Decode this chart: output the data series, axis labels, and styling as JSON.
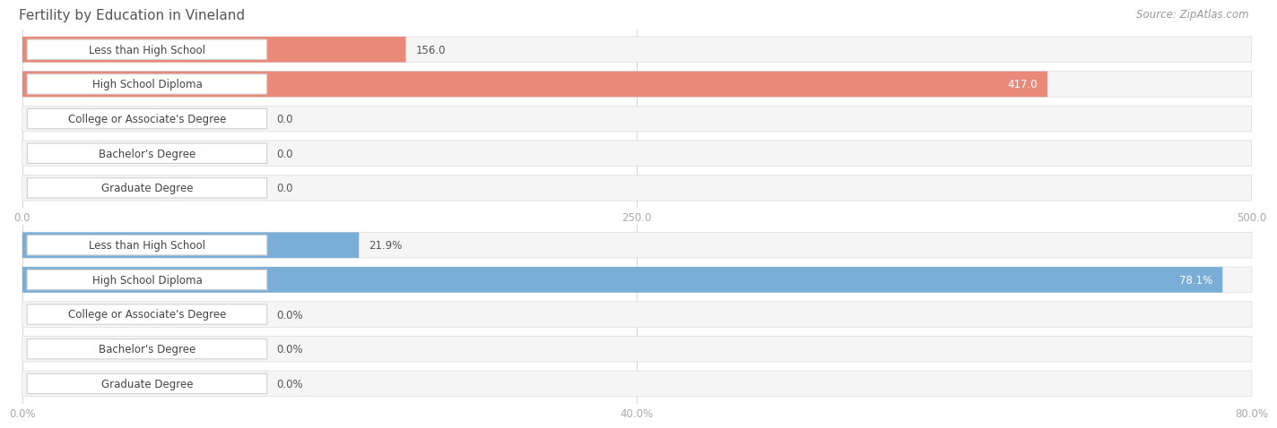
{
  "title": "Fertility by Education in Vineland",
  "source": "Source: ZipAtlas.com",
  "top_chart": {
    "categories": [
      "Less than High School",
      "High School Diploma",
      "College or Associate's Degree",
      "Bachelor's Degree",
      "Graduate Degree"
    ],
    "values": [
      156.0,
      417.0,
      0.0,
      0.0,
      0.0
    ],
    "bar_color": "#e8897a",
    "xlim": [
      0,
      500
    ],
    "xticks": [
      0.0,
      250.0,
      500.0
    ],
    "xtick_labels": [
      "0.0",
      "250.0",
      "500.0"
    ]
  },
  "bottom_chart": {
    "categories": [
      "Less than High School",
      "High School Diploma",
      "College or Associate's Degree",
      "Bachelor's Degree",
      "Graduate Degree"
    ],
    "values": [
      21.9,
      78.1,
      0.0,
      0.0,
      0.0
    ],
    "bar_color": "#7aaed6",
    "xlim": [
      0,
      80
    ],
    "xticks": [
      0.0,
      40.0,
      80.0
    ],
    "xtick_labels": [
      "0.0%",
      "40.0%",
      "80.0%"
    ]
  },
  "figure_bg": "#ffffff",
  "title_fontsize": 11,
  "title_color": "#555555",
  "source_fontsize": 8.5,
  "source_color": "#999999",
  "label_fontsize": 8.5,
  "value_fontsize": 8.5,
  "row_bg_color": "#f5f5f5",
  "row_border_color": "#e0e0e0",
  "label_box_color": "#ffffff",
  "label_box_border": "#d0d0d0",
  "grid_color": "#d8d8d8",
  "tick_color": "#aaaaaa"
}
